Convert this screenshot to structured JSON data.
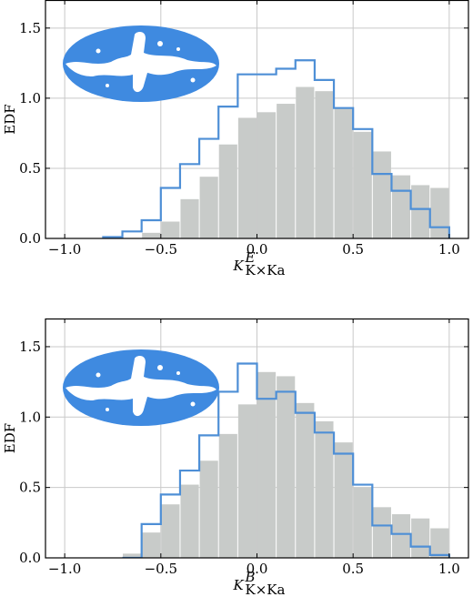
{
  "chart_data": [
    {
      "type": "bar",
      "id": "top",
      "ylabel": "EDF",
      "xlabel": {
        "base": "K",
        "sup": "E",
        "sub": "K×Ka"
      },
      "xlim": [
        -1.1,
        1.1
      ],
      "ylim": [
        0,
        1.7
      ],
      "xticks": [
        -1.0,
        -0.5,
        0.0,
        0.5,
        1.0
      ],
      "xtick_labels": [
        "−1.0",
        "−0.5",
        "0.0",
        "0.5",
        "1.0"
      ],
      "yticks": [
        0.0,
        0.5,
        1.0,
        1.5
      ],
      "ytick_labels": [
        "0.0",
        "0.5",
        "1.0",
        "1.5"
      ],
      "grid": true,
      "bin_edges": [
        -0.8,
        -0.7,
        -0.6,
        -0.5,
        -0.4,
        -0.3,
        -0.2,
        -0.1,
        0.0,
        0.1,
        0.2,
        0.3,
        0.4,
        0.5,
        0.6,
        0.7,
        0.8,
        0.9,
        1.0
      ],
      "series": [
        {
          "kind": "filled",
          "color": "#c8cbc9",
          "values": [
            0.0,
            0.0,
            0.04,
            0.12,
            0.28,
            0.44,
            0.67,
            0.86,
            0.9,
            0.96,
            1.08,
            1.05,
            0.93,
            0.76,
            0.62,
            0.45,
            0.38,
            0.36,
            0.42
          ]
        },
        {
          "kind": "step",
          "color": "#4e8fd6",
          "values": [
            0.01,
            0.05,
            0.13,
            0.36,
            0.53,
            0.71,
            0.94,
            1.17,
            1.17,
            1.21,
            1.27,
            1.13,
            0.93,
            0.78,
            0.46,
            0.34,
            0.21,
            0.08,
            0.0
          ]
        }
      ]
    },
    {
      "type": "bar",
      "id": "bottom",
      "ylabel": "EDF",
      "xlabel": {
        "base": "K",
        "sup": "B",
        "sub": "K×Ka"
      },
      "xlim": [
        -1.1,
        1.1
      ],
      "ylim": [
        0,
        1.7
      ],
      "xticks": [
        -1.0,
        -0.5,
        0.0,
        0.5,
        1.0
      ],
      "xtick_labels": [
        "−1.0",
        "−0.5",
        "0.0",
        "0.5",
        "1.0"
      ],
      "yticks": [
        0.0,
        0.5,
        1.0,
        1.5
      ],
      "ytick_labels": [
        "0.0",
        "0.5",
        "1.0",
        "1.5"
      ],
      "grid": true,
      "bin_edges": [
        -0.7,
        -0.6,
        -0.5,
        -0.4,
        -0.3,
        -0.2,
        -0.1,
        0.0,
        0.1,
        0.2,
        0.3,
        0.4,
        0.5,
        0.6,
        0.7,
        0.8,
        0.9,
        1.0
      ],
      "series": [
        {
          "kind": "filled",
          "color": "#c8cbc9",
          "values": [
            0.03,
            0.18,
            0.38,
            0.52,
            0.69,
            0.88,
            1.09,
            1.32,
            1.29,
            1.1,
            0.97,
            0.82,
            0.5,
            0.36,
            0.31,
            0.28,
            0.21,
            0.25
          ]
        },
        {
          "kind": "step",
          "color": "#4e8fd6",
          "values": [
            0.0,
            0.24,
            0.45,
            0.62,
            0.87,
            1.18,
            1.38,
            1.13,
            1.18,
            1.03,
            0.89,
            0.74,
            0.52,
            0.23,
            0.17,
            0.08,
            0.02,
            0.0
          ]
        }
      ]
    }
  ]
}
